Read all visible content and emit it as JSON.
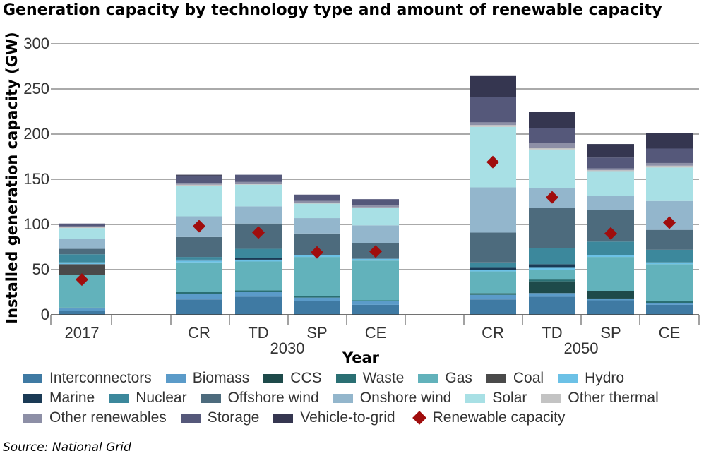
{
  "title": "Generation capacity by technology type and amount of renewable capacity",
  "source": "Source: National Grid",
  "colors": {
    "Interconnectors": "#3f7aa3",
    "Biomass": "#5b9bc9",
    "CCS": "#1e4a4a",
    "Waste": "#2a6f73",
    "Gas": "#62b2bb",
    "Coal": "#4a4a4a",
    "Hydro": "#6cc1e6",
    "Marine": "#1a3a55",
    "Nuclear": "#3c889c",
    "Offshore wind": "#4d6b7d",
    "Onshore wind": "#93b6cc",
    "Solar": "#a8e0e5",
    "Other thermal": "#c3c3c3",
    "Other renewables": "#8d8fa6",
    "Storage": "#55587a",
    "Vehicle-to-grid": "#353650",
    "Renewable capacity": "#a00d0d"
  },
  "chart_data": {
    "type": "bar",
    "stacked": true,
    "title": "Generation capacity by technology type and amount of renewable capacity",
    "xlabel": "Year",
    "ylabel": "Installed generation capacity (GW)",
    "ylim": [
      0,
      300
    ],
    "yticks": [
      0,
      50,
      100,
      150,
      200,
      250,
      300
    ],
    "grid": true,
    "legend_position": "bottom",
    "groups": [
      {
        "label": "",
        "categories": [
          "2017"
        ]
      },
      {
        "label": "2030",
        "categories": [
          "CR",
          "TD",
          "SP",
          "CE"
        ]
      },
      {
        "label": "2050",
        "categories": [
          "CR",
          "TD",
          "SP",
          "CE"
        ]
      }
    ],
    "categories": [
      "2017",
      "CR",
      "TD",
      "SP",
      "CE",
      "CR",
      "TD",
      "SP",
      "CE"
    ],
    "series": [
      {
        "name": "Interconnectors",
        "values": [
          4,
          17,
          20,
          15,
          11,
          17,
          20,
          16,
          11
        ]
      },
      {
        "name": "Biomass",
        "values": [
          3,
          6,
          5,
          4,
          4,
          5,
          4,
          2,
          2
        ]
      },
      {
        "name": "CCS",
        "values": [
          0,
          0,
          0,
          0,
          0,
          0,
          13,
          8,
          0
        ]
      },
      {
        "name": "Waste",
        "values": [
          1,
          2,
          2,
          2,
          1,
          2,
          2,
          0,
          2
        ]
      },
      {
        "name": "Gas",
        "values": [
          36,
          33,
          32,
          43,
          44,
          24,
          11,
          38,
          41
        ]
      },
      {
        "name": "Coal",
        "values": [
          12,
          0,
          0,
          0,
          0,
          0,
          0,
          0,
          0
        ]
      },
      {
        "name": "Hydro",
        "values": [
          2,
          2,
          2,
          2,
          2,
          2,
          2,
          2,
          2
        ]
      },
      {
        "name": "Marine",
        "values": [
          0,
          1,
          2,
          0,
          0,
          2,
          4,
          0,
          0
        ]
      },
      {
        "name": "Nuclear",
        "values": [
          9,
          3,
          10,
          0,
          0,
          6,
          18,
          15,
          14
        ]
      },
      {
        "name": "Offshore wind",
        "values": [
          6,
          22,
          28,
          24,
          17,
          33,
          44,
          35,
          22
        ]
      },
      {
        "name": "Onshore wind",
        "values": [
          11,
          23,
          19,
          17,
          20,
          50,
          22,
          16,
          32
        ]
      },
      {
        "name": "Solar",
        "values": [
          12,
          34,
          24,
          16,
          19,
          67,
          43,
          27,
          37
        ]
      },
      {
        "name": "Other thermal",
        "values": [
          1,
          1,
          1,
          1,
          1,
          2,
          2,
          1,
          2
        ]
      },
      {
        "name": "Other renewables",
        "values": [
          1,
          2,
          2,
          2,
          2,
          3,
          5,
          2,
          3
        ]
      },
      {
        "name": "Storage",
        "values": [
          3,
          8,
          8,
          7,
          7,
          28,
          17,
          12,
          16
        ]
      },
      {
        "name": "Vehicle-to-grid",
        "values": [
          0,
          1,
          0,
          0,
          0,
          24,
          18,
          15,
          17
        ]
      }
    ],
    "renewable_capacity": {
      "name": "Renewable capacity",
      "values": [
        39,
        98,
        91,
        69,
        70,
        169,
        130,
        90,
        102
      ]
    }
  },
  "legend": {
    "rows": [
      [
        "Interconnectors",
        "Biomass",
        "CCS",
        "Waste",
        "Gas",
        "Coal",
        "Hydro"
      ],
      [
        "Marine",
        "Nuclear",
        "Offshore wind",
        "Onshore wind",
        "Solar",
        "Other thermal"
      ],
      [
        "Other renewables",
        "Storage",
        "Vehicle-to-grid",
        "Renewable capacity"
      ]
    ]
  }
}
